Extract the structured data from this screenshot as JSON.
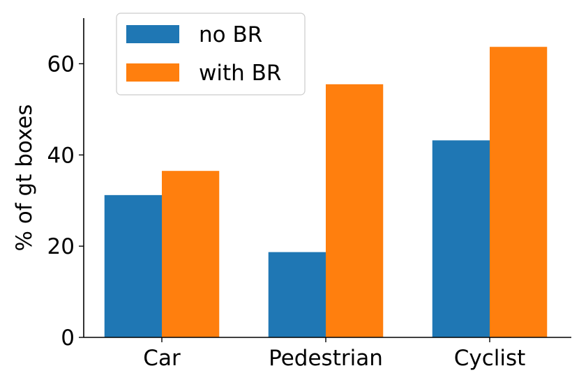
{
  "chart_data": {
    "type": "bar",
    "categories": [
      "Car",
      "Pedestrian",
      "Cyclist"
    ],
    "series": [
      {
        "name": "no BR",
        "color": "#1f77b4",
        "values": [
          31.2,
          18.7,
          43.2
        ]
      },
      {
        "name": "with BR",
        "color": "#ff7f0e",
        "values": [
          36.5,
          55.5,
          63.7
        ]
      }
    ],
    "ylabel": "% of gt boxes",
    "ylim": [
      0,
      70
    ],
    "yticks": [
      0,
      20,
      40,
      60
    ],
    "legend_position": "top-left",
    "grid": false
  }
}
